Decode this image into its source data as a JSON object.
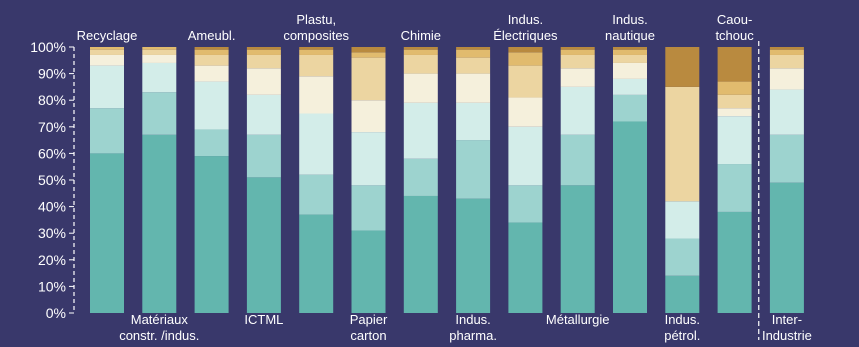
{
  "chart_data": {
    "type": "bar",
    "stacked": true,
    "orientation": "vertical",
    "y_axis": {
      "min": 0,
      "max": 100,
      "tick_labels": [
        "0%",
        "10%",
        "20%",
        "30%",
        "40%",
        "50%",
        "60%",
        "70%",
        "80%",
        "90%",
        "100%"
      ]
    },
    "categories": [
      [
        "Recyclage"
      ],
      [
        "Matériaux",
        "constr. /indus."
      ],
      [
        "Ameubl."
      ],
      [
        "ICTML"
      ],
      [
        "Plastu,",
        "composites"
      ],
      [
        "Papier",
        "carton"
      ],
      [
        "Chimie"
      ],
      [
        "Indus.",
        "pharma."
      ],
      [
        "Indus.",
        "Électriques"
      ],
      [
        "Métallurgie"
      ],
      [
        "Indus.",
        "nautique"
      ],
      [
        "Indus.",
        "pétrol."
      ],
      [
        "Caou-",
        "tchouc"
      ],
      [
        "Inter-",
        "Industrie"
      ]
    ],
    "label_positions": [
      "top",
      "bottom",
      "top",
      "bottom",
      "top",
      "bottom",
      "top",
      "bottom",
      "top",
      "bottom",
      "top",
      "bottom",
      "top",
      "bottom"
    ],
    "series_colors": [
      "#63b6ae",
      "#9dd3cf",
      "#d3ede9",
      "#f5f0dc",
      "#ecd5a1",
      "#e1bb6e",
      "#b98a3f"
    ],
    "series": [
      {
        "values": [
          60,
          67,
          59,
          51,
          37,
          31,
          44,
          43,
          34,
          48,
          72,
          14,
          38,
          49
        ]
      },
      {
        "values": [
          17,
          16,
          10,
          16,
          15,
          17,
          14,
          22,
          14,
          19,
          10,
          14,
          18,
          18
        ]
      },
      {
        "values": [
          16,
          11,
          18,
          15,
          23,
          20,
          21,
          14,
          22,
          18,
          6,
          14,
          18,
          17
        ]
      },
      {
        "values": [
          4,
          3,
          6,
          10,
          14,
          12,
          11,
          11,
          11,
          7,
          6,
          0,
          3,
          8
        ]
      },
      {
        "values": [
          2,
          2,
          4,
          5,
          8,
          16,
          7,
          6,
          12,
          5,
          3,
          43,
          5,
          5
        ]
      },
      {
        "values": [
          1,
          1,
          2,
          2,
          2,
          2,
          2,
          3,
          5,
          2,
          2,
          0,
          5,
          2
        ]
      },
      {
        "values": [
          0,
          0,
          1,
          1,
          1,
          2,
          1,
          1,
          2,
          1,
          1,
          15,
          13,
          1
        ]
      }
    ],
    "separator_before_index": 13
  }
}
